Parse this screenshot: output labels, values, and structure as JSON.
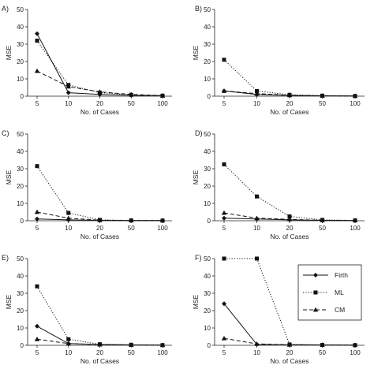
{
  "chart_data": [
    {
      "type": "line",
      "panel_label": "A)",
      "xlabel": "No. of Cases",
      "ylabel": "MSE",
      "categories": [
        "5",
        "10",
        "20",
        "50",
        "100"
      ],
      "yticks": [
        "0",
        "10",
        "20",
        "30",
        "40",
        "50"
      ],
      "ylim": [
        0,
        50
      ],
      "series": [
        {
          "name": "Firth",
          "values": [
            36,
            2,
            1,
            0.5,
            0.3
          ]
        },
        {
          "name": "ML",
          "values": [
            32,
            6.5,
            2,
            0.8,
            0.3
          ]
        },
        {
          "name": "CM",
          "values": [
            14.5,
            5.5,
            2.5,
            1,
            0.3
          ]
        }
      ]
    },
    {
      "type": "line",
      "panel_label": "B)",
      "xlabel": "No. of Cases",
      "ylabel": "MSE",
      "categories": [
        "5",
        "10",
        "20",
        "50",
        "100"
      ],
      "yticks": [
        "0",
        "10",
        "20",
        "30",
        "40",
        "50"
      ],
      "ylim": [
        0,
        50
      ],
      "series": [
        {
          "name": "Firth",
          "values": [
            3,
            1,
            0.4,
            0.2,
            0.1
          ]
        },
        {
          "name": "ML",
          "values": [
            21,
            3,
            0.8,
            0.3,
            0.1
          ]
        },
        {
          "name": "CM",
          "values": [
            3,
            1.5,
            0.5,
            0.2,
            0.1
          ]
        }
      ]
    },
    {
      "type": "line",
      "panel_label": "C)",
      "xlabel": "No. of Cases",
      "ylabel": "MSE",
      "categories": [
        "5",
        "10",
        "20",
        "50",
        "100"
      ],
      "yticks": [
        "0",
        "10",
        "20",
        "30",
        "40",
        "50"
      ],
      "ylim": [
        0,
        50
      ],
      "series": [
        {
          "name": "Firth",
          "values": [
            1,
            0.5,
            0.2,
            0.1,
            0.1
          ]
        },
        {
          "name": "ML",
          "values": [
            31.5,
            4.5,
            0.5,
            0.2,
            0.1
          ]
        },
        {
          "name": "CM",
          "values": [
            5,
            1.5,
            0.3,
            0.1,
            0.1
          ]
        }
      ]
    },
    {
      "type": "line",
      "panel_label": "D)",
      "xlabel": "No. of Cases",
      "ylabel": "MSE",
      "categories": [
        "5",
        "10",
        "20",
        "50",
        "100"
      ],
      "yticks": [
        "0",
        "10",
        "20",
        "30",
        "40",
        "50"
      ],
      "ylim": [
        0,
        50
      ],
      "series": [
        {
          "name": "Firth",
          "values": [
            1.5,
            1,
            0.5,
            0.2,
            0.1
          ]
        },
        {
          "name": "ML",
          "values": [
            32.5,
            14,
            2.5,
            0.5,
            0.2
          ]
        },
        {
          "name": "CM",
          "values": [
            4.5,
            1.5,
            0.8,
            0.2,
            0.1
          ]
        }
      ]
    },
    {
      "type": "line",
      "panel_label": "E)",
      "xlabel": "No. of Cases",
      "ylabel": "MSE",
      "categories": [
        "5",
        "10",
        "20",
        "50",
        "100"
      ],
      "yticks": [
        "0",
        "10",
        "20",
        "30",
        "40",
        "50"
      ],
      "ylim": [
        0,
        50
      ],
      "series": [
        {
          "name": "Firth",
          "values": [
            11,
            1,
            0.4,
            0.2,
            0.1
          ]
        },
        {
          "name": "ML",
          "values": [
            34,
            3.5,
            0.6,
            0.3,
            0.1
          ]
        },
        {
          "name": "CM",
          "values": [
            3.5,
            1,
            0.4,
            0.2,
            0.1
          ]
        }
      ]
    },
    {
      "type": "line",
      "panel_label": "F)",
      "xlabel": "No. of Cases",
      "ylabel": "MSE",
      "categories": [
        "5",
        "10",
        "20",
        "50",
        "100"
      ],
      "yticks": [
        "0",
        "10",
        "20",
        "30",
        "40",
        "50"
      ],
      "ylim": [
        0,
        50
      ],
      "series": [
        {
          "name": "Firth",
          "values": [
            24,
            0.5,
            0.3,
            0.2,
            0.1
          ]
        },
        {
          "name": "ML",
          "values": [
            50,
            50,
            0.5,
            0.2,
            0.1
          ]
        },
        {
          "name": "CM",
          "values": [
            4,
            0.8,
            0.3,
            0.2,
            0.1
          ]
        }
      ]
    }
  ],
  "legend": {
    "placement": "right",
    "items": [
      {
        "label": "Firth",
        "marker": "diamond",
        "dash": "solid"
      },
      {
        "label": "ML",
        "marker": "square",
        "dash": "dotted"
      },
      {
        "label": "CM",
        "marker": "triangle",
        "dash": "dashed"
      }
    ]
  }
}
